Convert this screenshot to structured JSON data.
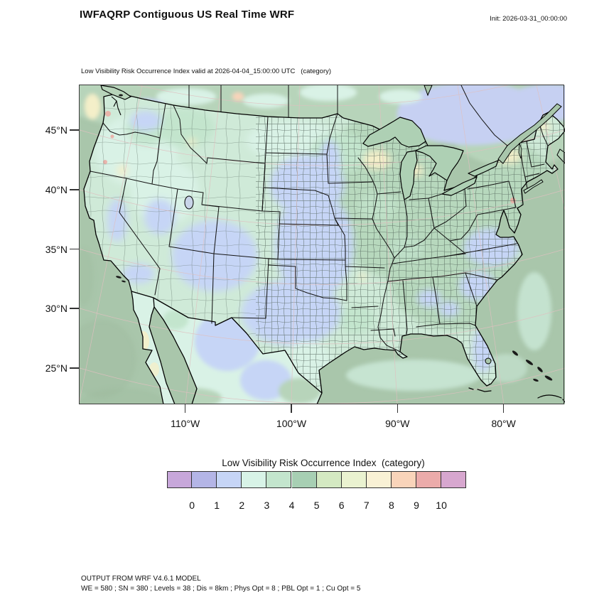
{
  "header": {
    "title": "IWFAQRP Contiguous US Real Time WRF",
    "init": "Init: 2026-03-31_00:00:00"
  },
  "map": {
    "subtitle": "Low Visibility Risk Occurrence Index valid at 2026-04-04_15:00:00 UTC   (category)"
  },
  "axes": {
    "lat": [
      "45°N",
      "40°N",
      "35°N",
      "30°N",
      "25°N"
    ],
    "lon": [
      "110°W",
      "100°W",
      "90°W",
      "80°W"
    ]
  },
  "legend": {
    "title": "Low Visibility Risk Occurrence Index  (category)",
    "categories": [
      "0",
      "1",
      "2",
      "3",
      "4",
      "5",
      "6",
      "7",
      "8",
      "9",
      "10"
    ],
    "colors": [
      "#c7a7da",
      "#b4b5e6",
      "#c6d5f6",
      "#d8f3e7",
      "#c3e5cd",
      "#a7cfb3",
      "#d4e9c2",
      "#eaf2d0",
      "#f9f1d5",
      "#f9d4ba",
      "#ebabaa",
      "#d7a7cf"
    ]
  },
  "footer": {
    "line1": "OUTPUT FROM WRF V4.6.1 MODEL",
    "line2": "WE = 580 ; SN = 380 ; Levels = 38 ; Dis = 8km ; Phys Opt = 8 ; PBL Opt = 1 ; Cu Opt = 5"
  },
  "chart_data": {
    "type": "choropleth_map",
    "projection": "Lambert conformal (CONUS WRF domain)",
    "variable": "Low Visibility Risk Occurrence Index",
    "units": "category",
    "valid_time": "2026-04-04_15:00:00 UTC",
    "init_time": "2026-03-31_00:00:00",
    "colorbar": {
      "categories": [
        0,
        1,
        2,
        3,
        4,
        5,
        6,
        7,
        8,
        9,
        10
      ],
      "colors": [
        "#c7a7da",
        "#b4b5e6",
        "#c6d5f6",
        "#d8f3e7",
        "#c3e5cd",
        "#a7cfb3",
        "#d4e9c2",
        "#eaf2d0",
        "#f9f1d5",
        "#f9d4ba",
        "#ebabaa",
        "#d7a7cf"
      ]
    },
    "axis_ticks": {
      "lat": [
        45,
        40,
        35,
        30,
        25
      ],
      "lon": [
        -110,
        -100,
        -90,
        -80
      ]
    },
    "region_categories": {
      "pacific_atlantic_gulf_ocean": 4,
      "western_us_interior": "2-3",
      "central_plains_NE_KS_OK_west_TX": 2,
      "eastern_us": 4,
      "upper_midwest": "3-4",
      "southeast_coastal_plain_florida": "2-4",
      "canada_northeast_quebec": 2,
      "canada_west": "3-4",
      "mexico_interior": "2-3",
      "isolated_spots_WI_NY_ME_MT": "7-8",
      "isolated_coastal_specks_WA_OR_PA": "9-10"
    },
    "notes": "County and state boundaries overlaid on CONUS; categorical shading per colorbar"
  }
}
